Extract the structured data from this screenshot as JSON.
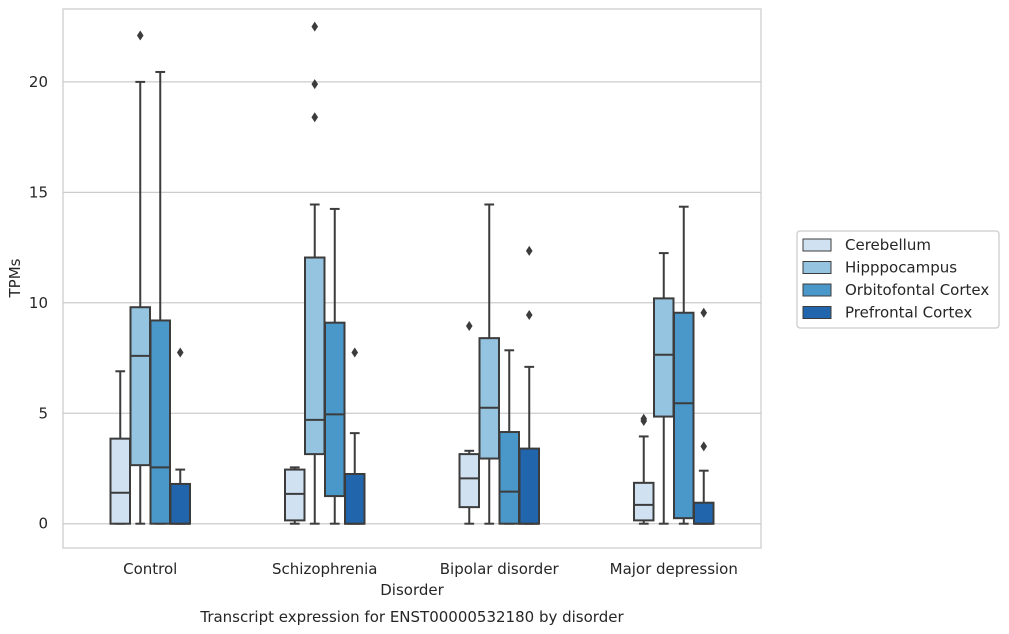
{
  "chart_data": {
    "type": "box",
    "title": "Transcript expression for ENST00000532180 by disorder",
    "xlabel": "Disorder",
    "ylabel": "TPMs",
    "categories": [
      "Control",
      "Schizophrenia",
      "Bipolar disorder",
      "Major depression"
    ],
    "ylim": [
      -1.1,
      23.3
    ],
    "yticks": [
      0,
      5,
      10,
      15,
      20
    ],
    "grid": true,
    "legend_position": "right",
    "series": [
      {
        "name": "Cerebellum",
        "color": "#d0e1f2",
        "boxes": [
          {
            "q1": 0,
            "median": 1.4,
            "q3": 3.85,
            "whisker_low": 0,
            "whisker_high": 6.9,
            "outliers": []
          },
          {
            "q1": 0.15,
            "median": 1.35,
            "q3": 2.45,
            "whisker_low": 0,
            "whisker_high": 2.55,
            "outliers": []
          },
          {
            "q1": 0.75,
            "median": 2.05,
            "q3": 3.15,
            "whisker_low": 0,
            "whisker_high": 3.3,
            "outliers": [
              8.95
            ]
          },
          {
            "q1": 0.15,
            "median": 0.85,
            "q3": 1.85,
            "whisker_low": 0,
            "whisker_high": 3.95,
            "outliers": [
              4.65,
              4.75
            ]
          }
        ]
      },
      {
        "name": "Hipppocampus",
        "color": "#94c4df",
        "boxes": [
          {
            "q1": 2.65,
            "median": 7.6,
            "q3": 9.8,
            "whisker_low": 0,
            "whisker_high": 20.0,
            "outliers": [
              22.1
            ]
          },
          {
            "q1": 3.15,
            "median": 4.7,
            "q3": 12.05,
            "whisker_low": 0,
            "whisker_high": 14.45,
            "outliers": [
              18.4,
              19.9,
              22.5
            ]
          },
          {
            "q1": 2.95,
            "median": 5.25,
            "q3": 8.4,
            "whisker_low": 0,
            "whisker_high": 14.45,
            "outliers": []
          },
          {
            "q1": 4.85,
            "median": 7.65,
            "q3": 10.2,
            "whisker_low": 0,
            "whisker_high": 12.25,
            "outliers": []
          }
        ]
      },
      {
        "name": "Orbitofontal Cortex",
        "color": "#4a98c9",
        "boxes": [
          {
            "q1": 0,
            "median": 2.55,
            "q3": 9.2,
            "whisker_low": 0,
            "whisker_high": 20.45,
            "outliers": []
          },
          {
            "q1": 1.25,
            "median": 4.95,
            "q3": 9.1,
            "whisker_low": 0,
            "whisker_high": 14.25,
            "outliers": []
          },
          {
            "q1": 0,
            "median": 1.45,
            "q3": 4.15,
            "whisker_low": 0,
            "whisker_high": 7.85,
            "outliers": []
          },
          {
            "q1": 0.25,
            "median": 5.45,
            "q3": 9.55,
            "whisker_low": 0,
            "whisker_high": 14.35,
            "outliers": []
          }
        ]
      },
      {
        "name": "Prefrontal Cortex",
        "color": "#2166ac",
        "boxes": [
          {
            "q1": 0,
            "median": 0,
            "q3": 1.8,
            "whisker_low": 0,
            "whisker_high": 2.45,
            "outliers": [
              7.75
            ]
          },
          {
            "q1": 0,
            "median": 0,
            "q3": 2.25,
            "whisker_low": 0,
            "whisker_high": 4.1,
            "outliers": [
              7.75
            ]
          },
          {
            "q1": 0,
            "median": 0,
            "q3": 3.4,
            "whisker_low": 0,
            "whisker_high": 7.1,
            "outliers": [
              9.45,
              12.35
            ]
          },
          {
            "q1": 0,
            "median": 0,
            "q3": 0.95,
            "whisker_low": 0,
            "whisker_high": 2.4,
            "outliers": [
              3.5,
              9.55
            ]
          }
        ]
      }
    ]
  }
}
